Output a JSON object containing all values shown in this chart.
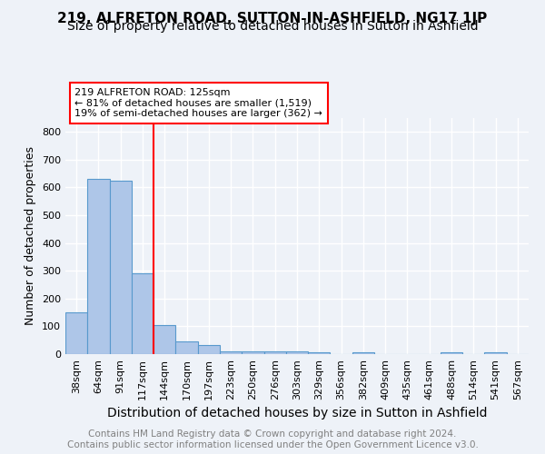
{
  "title": "219, ALFRETON ROAD, SUTTON-IN-ASHFIELD, NG17 1JP",
  "subtitle": "Size of property relative to detached houses in Sutton in Ashfield",
  "xlabel": "Distribution of detached houses by size in Sutton in Ashfield",
  "ylabel": "Number of detached properties",
  "footnote": "Contains HM Land Registry data © Crown copyright and database right 2024.\nContains public sector information licensed under the Open Government Licence v3.0.",
  "bar_labels": [
    "38sqm",
    "64sqm",
    "91sqm",
    "117sqm",
    "144sqm",
    "170sqm",
    "197sqm",
    "223sqm",
    "250sqm",
    "276sqm",
    "303sqm",
    "329sqm",
    "356sqm",
    "382sqm",
    "409sqm",
    "435sqm",
    "461sqm",
    "488sqm",
    "514sqm",
    "541sqm",
    "567sqm"
  ],
  "bar_heights": [
    150,
    630,
    625,
    290,
    103,
    45,
    32,
    10,
    10,
    10,
    10,
    8,
    0,
    8,
    0,
    0,
    0,
    8,
    0,
    8,
    0
  ],
  "bar_color": "#aec6e8",
  "bar_edge_color": "#5899cd",
  "red_line_x": 3.5,
  "annotation_line1": "219 ALFRETON ROAD: 125sqm",
  "annotation_line2": "← 81% of detached houses are smaller (1,519)",
  "annotation_line3": "19% of semi-detached houses are larger (362) →",
  "annotation_box_color": "white",
  "annotation_box_edge_color": "red",
  "ylim": [
    0,
    850
  ],
  "yticks": [
    0,
    100,
    200,
    300,
    400,
    500,
    600,
    700,
    800
  ],
  "background_color": "#eef2f8",
  "grid_color": "white",
  "title_fontsize": 11,
  "subtitle_fontsize": 10,
  "xlabel_fontsize": 10,
  "ylabel_fontsize": 9,
  "tick_fontsize": 8,
  "annotation_fontsize": 8,
  "footnote_fontsize": 7.5
}
